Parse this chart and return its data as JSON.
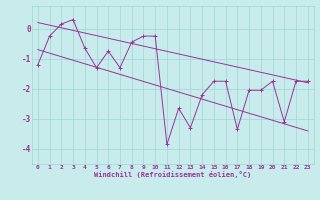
{
  "xlabel": "Windchill (Refroidissement éolien,°C)",
  "x_values": [
    0,
    1,
    2,
    3,
    4,
    5,
    6,
    7,
    8,
    9,
    10,
    11,
    12,
    13,
    14,
    15,
    16,
    17,
    18,
    19,
    20,
    21,
    22,
    23
  ],
  "main_line": [
    -1.2,
    -0.25,
    0.15,
    0.3,
    -0.65,
    -1.3,
    -0.75,
    -1.3,
    -0.45,
    -0.25,
    -0.25,
    -3.85,
    -2.65,
    -3.3,
    -2.2,
    -1.75,
    -1.75,
    -3.35,
    -2.05,
    -2.05,
    -1.75,
    -3.1,
    -1.75,
    -1.75
  ],
  "upper_line_pts": [
    [
      0,
      0.2
    ],
    [
      23,
      -1.8
    ]
  ],
  "lower_line_pts": [
    [
      0,
      -0.7
    ],
    [
      23,
      -3.4
    ]
  ],
  "color": "#993399",
  "bg_color": "#c8ecec",
  "grid_color": "#a0d4d4",
  "ylim": [
    -4.5,
    0.75
  ],
  "yticks": [
    -4,
    -3,
    -2,
    -1,
    0
  ],
  "xlim": [
    -0.5,
    23.5
  ],
  "marker_size": 2.5,
  "linewidth": 0.7,
  "xlabel_fontsize": 5.0,
  "tick_fontsize": 4.5
}
